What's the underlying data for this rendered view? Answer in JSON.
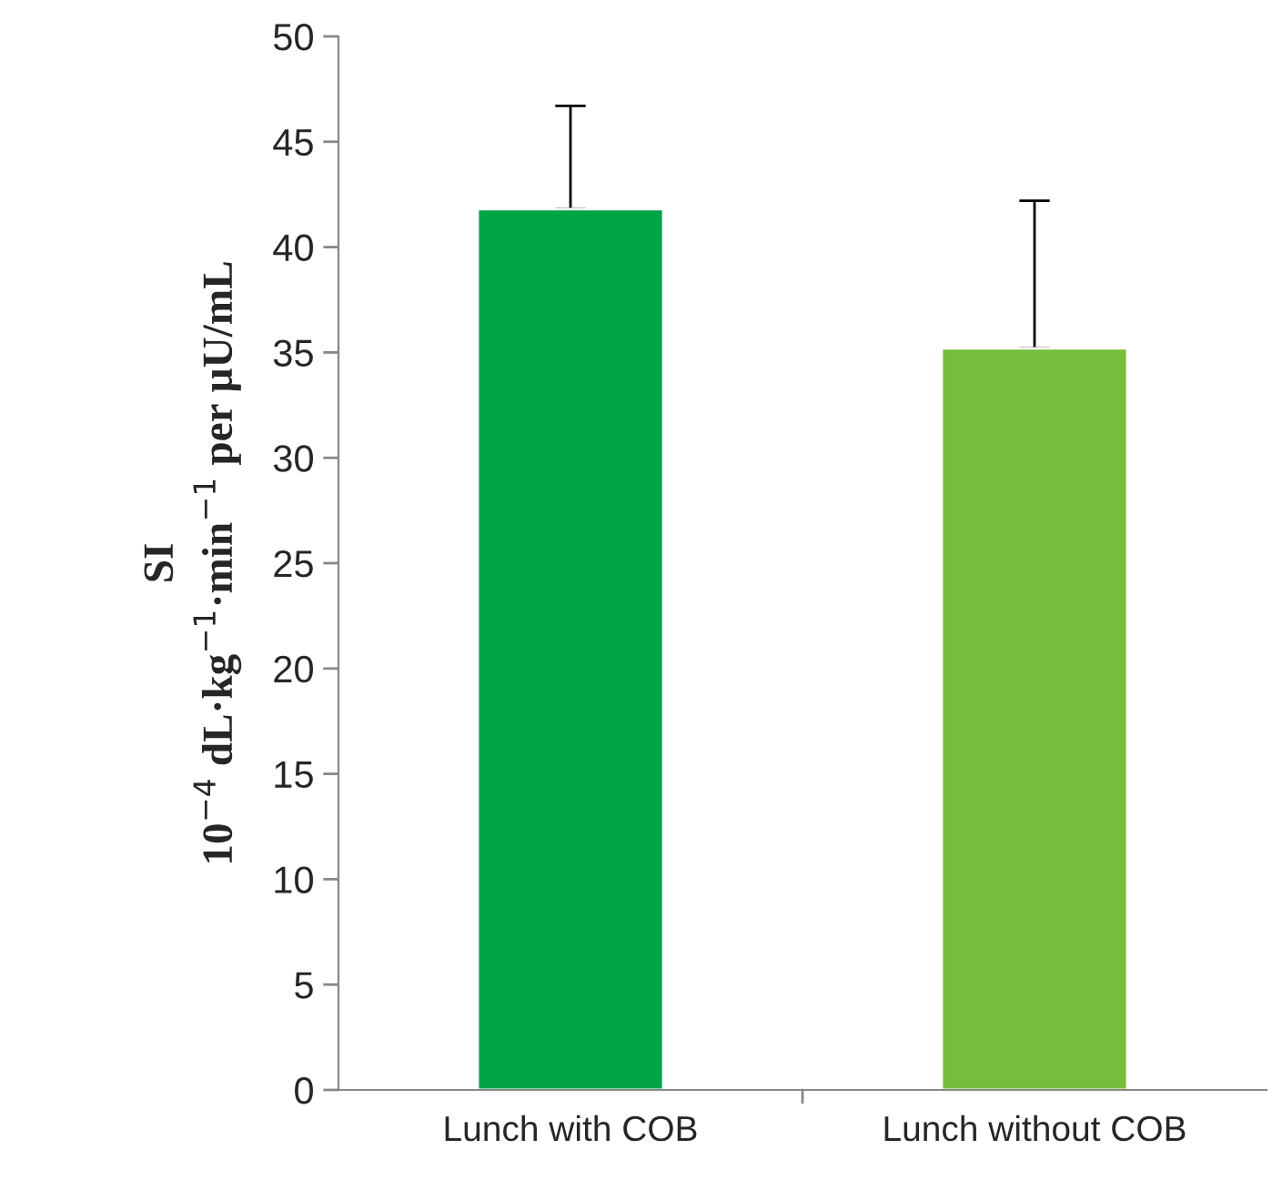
{
  "chart_data": {
    "type": "bar",
    "ylabel": "SI\n10$^{−4}$ dL·kg$^{−1}$·min$^{−1}$ per µU/mL",
    "categories": [
      "Lunch with COB",
      "Lunch without COB"
    ],
    "values": [
      41.8,
      35.2
    ],
    "errors": [
      [
        41.8,
        46.7
      ],
      [
        35.2,
        42.2
      ]
    ],
    "colors": [
      "#00a345",
      "#76bd3c"
    ],
    "ylim": [
      0,
      50
    ],
    "yticks": [
      0,
      5,
      10,
      15,
      20,
      25,
      30,
      35,
      40,
      45,
      50
    ],
    "grid": false,
    "legend": false
  }
}
